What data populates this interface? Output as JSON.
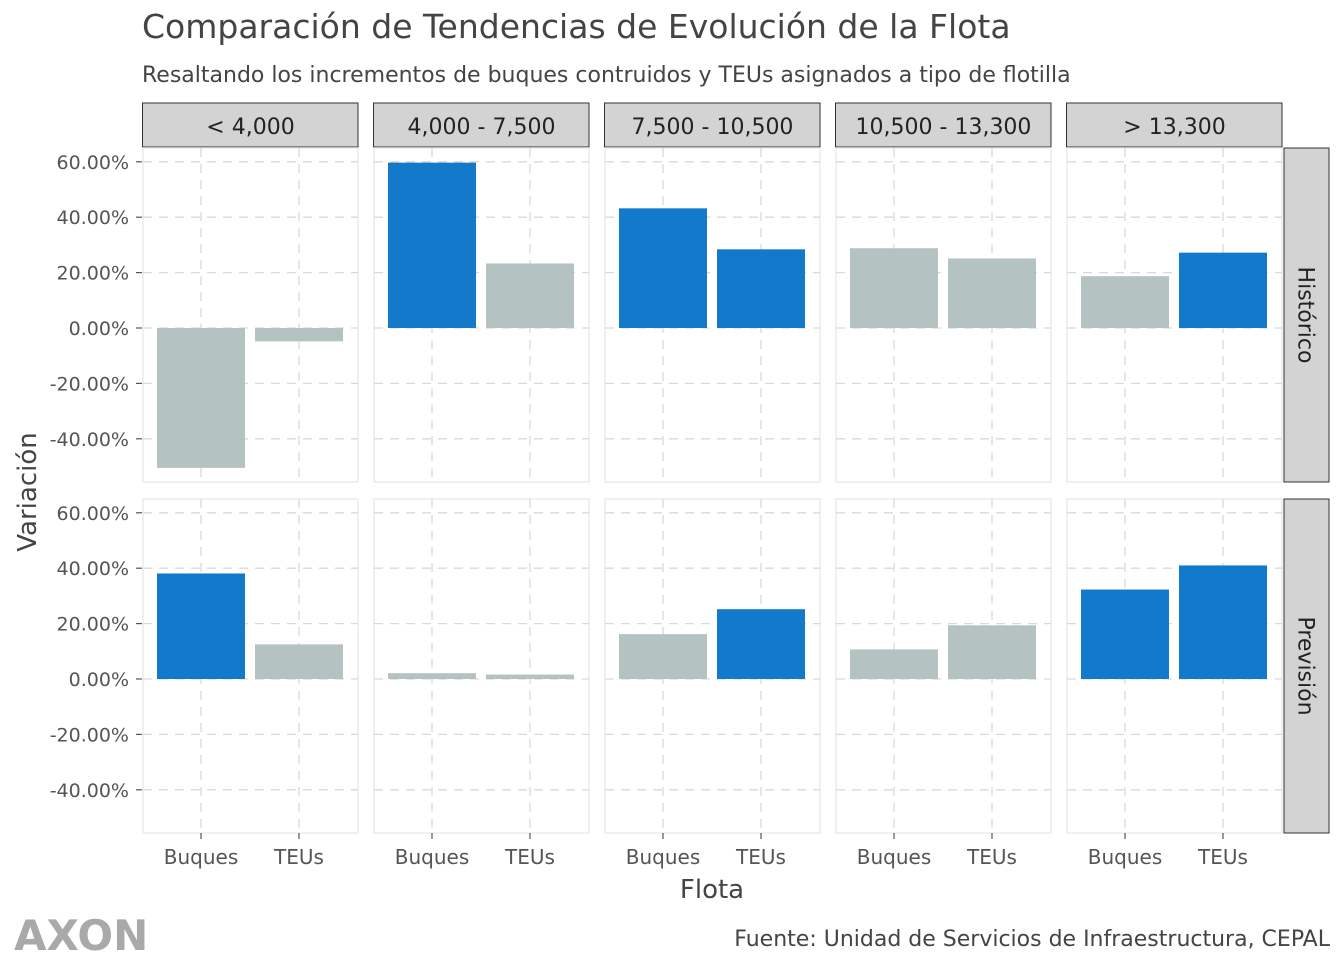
{
  "colors": {
    "highlight": "#1279CB",
    "muted": "#B5C2C2",
    "strip_fill": "#D3D3D3",
    "panel_border": "#EBEBEB",
    "grid": "#D9D9D9",
    "text": "#444444",
    "logo": "#A9A9A9"
  },
  "logo": {
    "text": "AXON"
  },
  "caption": "Fuente: Unidad de Servicios de Infraestructura, CEPAL",
  "chart_data": {
    "type": "bar",
    "title": "Comparación de Tendencias de Evolución de la Flota",
    "subtitle": "Resaltando los incrementos de buques contruidos y TEUs asignados a tipo de flotilla",
    "xlabel": "Flota",
    "ylabel": "Variación",
    "categories": [
      "Buques",
      "TEUs"
    ],
    "ylim": [
      -0.55,
      0.63
    ],
    "yticks": [
      "60.00%",
      "40.00%",
      "20.00%",
      "0.00%",
      "-20.00%",
      "-40.00%"
    ],
    "ytick_values": [
      0.6,
      0.4,
      0.2,
      0.0,
      -0.2,
      -0.4
    ],
    "grid": true,
    "facet_cols": [
      "< 4,000",
      "4,000 - 7,500",
      "7,500 - 10,500",
      "10,500 - 13,300",
      "> 13,300"
    ],
    "facet_rows": [
      "Histórico",
      "Previsión"
    ],
    "panels": [
      {
        "row": "Histórico",
        "col": "< 4,000",
        "values": [
          -0.505,
          -0.048
        ],
        "highlight": [
          false,
          false
        ]
      },
      {
        "row": "Histórico",
        "col": "4,000 - 7,500",
        "values": [
          0.597,
          0.233
        ],
        "highlight": [
          true,
          false
        ]
      },
      {
        "row": "Histórico",
        "col": "7,500 - 10,500",
        "values": [
          0.432,
          0.284
        ],
        "highlight": [
          true,
          true
        ]
      },
      {
        "row": "Histórico",
        "col": "10,500 - 13,300",
        "values": [
          0.288,
          0.251
        ],
        "highlight": [
          false,
          false
        ]
      },
      {
        "row": "Histórico",
        "col": "> 13,300",
        "values": [
          0.187,
          0.272
        ],
        "highlight": [
          false,
          true
        ]
      },
      {
        "row": "Previsión",
        "col": "< 4,000",
        "values": [
          0.381,
          0.125
        ],
        "highlight": [
          true,
          false
        ]
      },
      {
        "row": "Previsión",
        "col": "4,000 - 7,500",
        "values": [
          0.021,
          0.016
        ],
        "highlight": [
          false,
          false
        ]
      },
      {
        "row": "Previsión",
        "col": "7,500 - 10,500",
        "values": [
          0.162,
          0.252
        ],
        "highlight": [
          false,
          true
        ]
      },
      {
        "row": "Previsión",
        "col": "10,500 - 13,300",
        "values": [
          0.107,
          0.194
        ],
        "highlight": [
          false,
          false
        ]
      },
      {
        "row": "Previsión",
        "col": "> 13,300",
        "values": [
          0.323,
          0.41
        ],
        "highlight": [
          true,
          true
        ]
      }
    ]
  }
}
